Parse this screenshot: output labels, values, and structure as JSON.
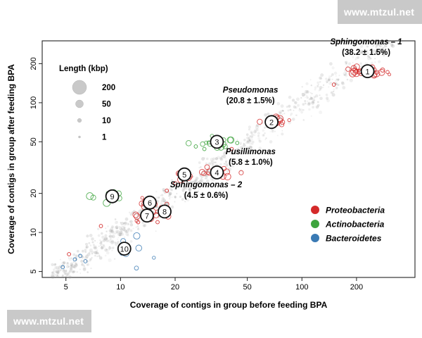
{
  "watermarks": {
    "top": "www.mtzul.net",
    "bottom": "www.mtzul.net"
  },
  "chart_data": {
    "type": "scatter",
    "xlabel": "Coverage of contigs in group before feeding BPA",
    "ylabel": "Coverage of contigs in group after feeding BPA",
    "xscale": "log",
    "yscale": "log",
    "xlim": [
      3.7,
      420
    ],
    "ylim": [
      4.5,
      300
    ],
    "xticks": [
      5,
      10,
      20,
      50,
      100,
      200
    ],
    "yticks": [
      5,
      10,
      20,
      50,
      100,
      200
    ],
    "grid": false,
    "size_legend": {
      "title": "Length (kbp)",
      "items": [
        {
          "label": "200",
          "value": 200
        },
        {
          "label": "50",
          "value": 50
        },
        {
          "label": "10",
          "value": 10
        },
        {
          "label": "1",
          "value": 1
        }
      ]
    },
    "color_legend": {
      "placement": "bottom-right",
      "items": [
        {
          "label": "Proteobacteria",
          "color": "#d42a2a"
        },
        {
          "label": "Actinobacteria",
          "color": "#3ea43e"
        },
        {
          "label": "Bacteroidetes",
          "color": "#3a7ab4"
        }
      ]
    },
    "groups": [
      {
        "number": "1",
        "x": 230,
        "y": 175,
        "phylum": "Proteobacteria"
      },
      {
        "number": "2",
        "x": 68,
        "y": 71,
        "phylum": "Proteobacteria"
      },
      {
        "number": "3",
        "x": 34,
        "y": 50,
        "phylum": "Actinobacteria"
      },
      {
        "number": "4",
        "x": 34,
        "y": 29,
        "phylum": "Proteobacteria"
      },
      {
        "number": "5",
        "x": 22.5,
        "y": 28,
        "phylum": "Proteobacteria"
      },
      {
        "number": "6",
        "x": 14.5,
        "y": 17,
        "phylum": "Proteobacteria"
      },
      {
        "number": "7",
        "x": 14,
        "y": 13.5,
        "phylum": "Proteobacteria"
      },
      {
        "number": "8",
        "x": 17.5,
        "y": 14.5,
        "phylum": "Proteobacteria"
      },
      {
        "number": "9",
        "x": 9,
        "y": 19,
        "phylum": "Actinobacteria"
      },
      {
        "number": "10",
        "x": 10.5,
        "y": 7.5,
        "phylum": "Bacteroidetes"
      }
    ],
    "annotations": [
      {
        "name": "Sphingomonas – 1",
        "value": "(38.2 ± 1.5%)",
        "x": 230,
        "y": 175
      },
      {
        "name": "Pseudomonas",
        "value": "(20.8 ± 1.5%)",
        "x": 68,
        "y": 71
      },
      {
        "name": "Pusillimonas",
        "value": "(5.8 ± 1.0%)",
        "x": 34,
        "y": 29
      },
      {
        "name": "Sphingomonas – 2",
        "value": "(4.5 ± 0.6%)",
        "x": 14,
        "y": 13.5
      }
    ]
  }
}
